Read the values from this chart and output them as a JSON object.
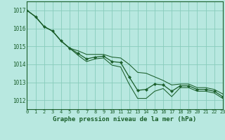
{
  "title": "Graphe pression niveau de la mer (hPa)",
  "background_color": "#b8e8e0",
  "plot_bg_color": "#b8e8e0",
  "grid_color": "#88ccbb",
  "line_color": "#1a5e2a",
  "border_color": "#1a5e2a",
  "xlim": [
    0,
    23
  ],
  "ylim": [
    1011.5,
    1017.5
  ],
  "yticks": [
    1012,
    1013,
    1014,
    1015,
    1016,
    1017
  ],
  "xticks": [
    0,
    1,
    2,
    3,
    4,
    5,
    6,
    7,
    8,
    9,
    10,
    11,
    12,
    13,
    14,
    15,
    16,
    17,
    18,
    19,
    20,
    21,
    22,
    23
  ],
  "x_main": [
    0,
    1,
    2,
    3,
    4,
    5,
    6,
    7,
    8,
    9,
    10,
    11,
    12,
    13,
    14,
    15,
    16,
    17,
    18,
    19,
    20,
    21,
    22,
    23
  ],
  "y_main": [
    1017.0,
    1016.65,
    1016.1,
    1015.85,
    1015.3,
    1014.9,
    1014.6,
    1014.3,
    1014.4,
    1014.45,
    1014.15,
    1014.1,
    1013.3,
    1012.55,
    1012.6,
    1012.9,
    1012.85,
    1012.5,
    1012.8,
    1012.8,
    1012.6,
    1012.6,
    1012.5,
    1012.2
  ],
  "y_upper": [
    1017.0,
    1016.65,
    1016.1,
    1015.85,
    1015.3,
    1014.9,
    1014.75,
    1014.55,
    1014.55,
    1014.55,
    1014.4,
    1014.35,
    1014.0,
    1013.55,
    1013.5,
    1013.3,
    1013.1,
    1012.85,
    1012.9,
    1012.9,
    1012.7,
    1012.7,
    1012.6,
    1012.35
  ],
  "y_lower": [
    1017.0,
    1016.65,
    1016.1,
    1015.85,
    1015.3,
    1014.9,
    1014.5,
    1014.15,
    1014.3,
    1014.35,
    1013.95,
    1013.85,
    1012.9,
    1012.1,
    1012.1,
    1012.5,
    1012.65,
    1012.2,
    1012.7,
    1012.7,
    1012.5,
    1012.5,
    1012.4,
    1012.1
  ],
  "ytick_fontsize": 5.5,
  "xtick_fontsize": 5.0,
  "xlabel_fontsize": 6.5,
  "linewidth_main": 0.9,
  "linewidth_env": 0.75,
  "markersize": 2.2
}
